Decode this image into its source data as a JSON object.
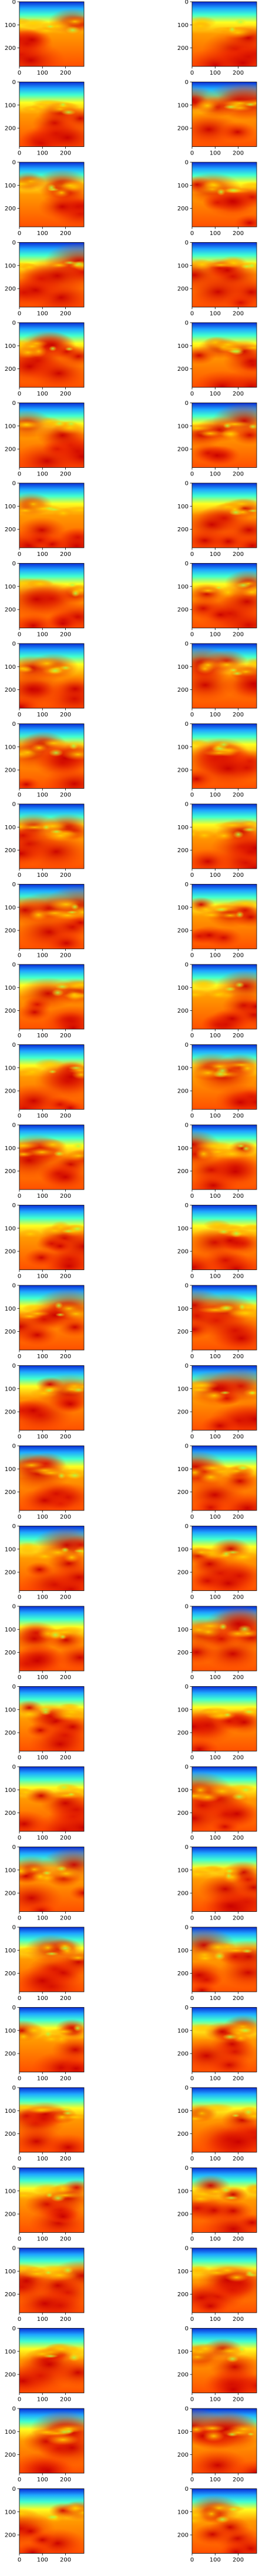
{
  "chart_data": {
    "type": "heatmap",
    "colormap": "jet",
    "layout": {
      "rows": 32,
      "cols": 2
    },
    "panel_count": 64,
    "title": "",
    "xlabel": "",
    "ylabel": "",
    "xlim": [
      0,
      280
    ],
    "ylim": [
      280,
      0
    ],
    "x_ticks": [
      0,
      100,
      200
    ],
    "y_ticks": [
      0,
      100,
      200
    ],
    "x_tick_labels": [
      "0",
      "100",
      "200"
    ],
    "y_tick_labels": [
      "0",
      "100",
      "200"
    ],
    "grid": false,
    "legend": "none",
    "field_description_levels": {
      "top_edge": "low (blue/cyan)",
      "interior": "high (red/orange)",
      "band_near_y_100_to_130": "moderate (yellow/green)"
    }
  }
}
